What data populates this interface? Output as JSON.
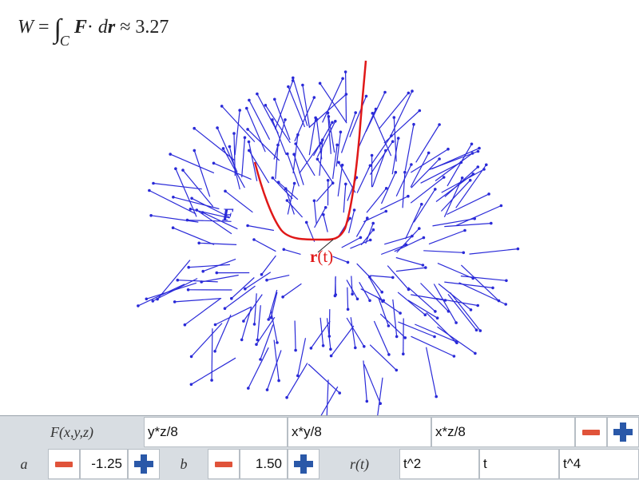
{
  "formula": {
    "lhs": "W",
    "equals": "=",
    "integral": "∫",
    "subscript": "C",
    "F": "F",
    "dot": "·",
    "d": "d",
    "r": "r",
    "approx": "≈",
    "value": "3.27"
  },
  "plot": {
    "field_label": "F",
    "curve_label_bold": "r",
    "curve_label_rest": "(t)",
    "field_color": "#2a2ad8",
    "curve_color": "#e01818"
  },
  "controls": {
    "field_label": "F(x,y,z)",
    "field_x": "y*z/8",
    "field_y": "x*y/8",
    "field_z": "x*z/8",
    "a_label": "a",
    "a_value": "-1.25",
    "b_label": "b",
    "b_value": "1.50",
    "r_label": "r(t)",
    "r_x": "t^2",
    "r_y": "t",
    "r_z": "t^4",
    "minus_color": "#e0533a",
    "plus_color": "#2a58a8"
  }
}
